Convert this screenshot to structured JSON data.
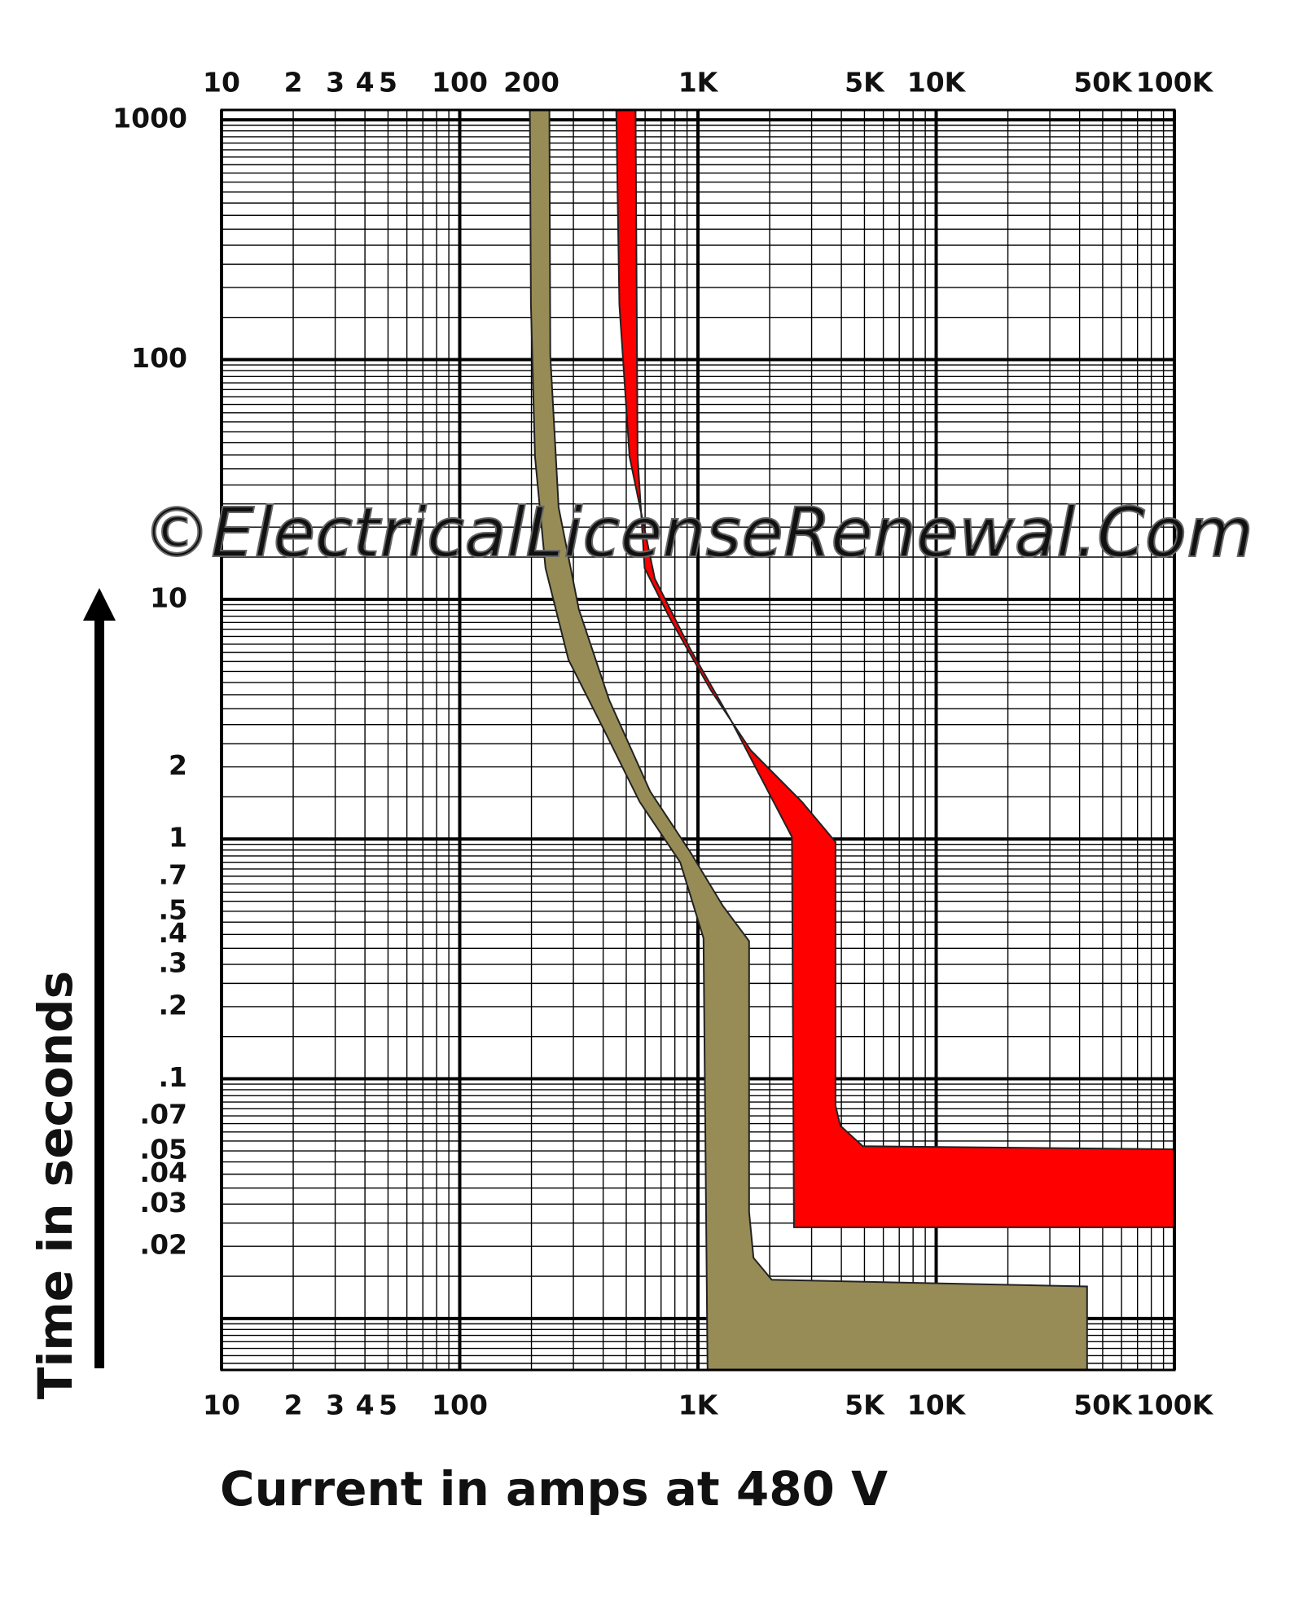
{
  "chart_data": {
    "type": "band",
    "watermark": "©ElectricalLicenseRenewal.Com",
    "xlabel": "Current in amps at 480 V",
    "ylabel": "Time in seconds",
    "xscale": "log",
    "yscale": "log",
    "grid": true,
    "xlim": [
      10,
      100000
    ],
    "ylim": [
      0.0061,
      1100
    ],
    "xticks": [
      10,
      {
        "value": 20,
        "label": "2"
      },
      {
        "value": 30,
        "label": "3"
      },
      {
        "value": 40,
        "label": "4"
      },
      {
        "value": 50,
        "label": "5"
      },
      100,
      {
        "value": 1000,
        "label": "1K"
      },
      {
        "value": 5000,
        "label": "5K"
      },
      {
        "value": 10000,
        "label": "10K"
      },
      {
        "value": 50000,
        "label": "50K"
      },
      {
        "value": 100000,
        "label": "100K"
      }
    ],
    "x2ticks": [
      10,
      {
        "value": 20,
        "label": "2"
      },
      {
        "value": 30,
        "label": "3"
      },
      {
        "value": 40,
        "label": "4"
      },
      {
        "value": 50,
        "label": "5"
      },
      100,
      200,
      {
        "value": 1000,
        "label": "1K"
      },
      {
        "value": 5000,
        "label": "5K"
      },
      {
        "value": 10000,
        "label": "10K"
      },
      {
        "value": 50000,
        "label": "50K"
      },
      {
        "value": 100000,
        "label": "100K"
      }
    ],
    "yticks": [
      1000,
      100,
      10,
      2,
      1,
      {
        "value": 0.7,
        "label": ".7"
      },
      {
        "value": 0.5,
        "label": ".5"
      },
      {
        "value": 0.4,
        "label": ".4"
      },
      {
        "value": 0.3,
        "label": ".3"
      },
      {
        "value": 0.2,
        "label": ".2"
      },
      {
        "value": 0.1,
        "label": ".1"
      },
      {
        "value": 0.07,
        "label": ".07"
      },
      {
        "value": 0.05,
        "label": ".05"
      },
      {
        "value": 0.04,
        "label": ".04"
      },
      {
        "value": 0.03,
        "label": ".03"
      },
      {
        "value": 0.02,
        "label": ".02"
      }
    ],
    "series": [
      {
        "color": "#978c56",
        "x": [
          197,
          199,
          207,
          229,
          286,
          404,
          569,
          842,
          1055,
          1097,
          43000,
          43000,
          2040,
          1710,
          1640,
          1640,
          1270,
          930,
          630,
          424,
          316,
          260,
          240,
          238
        ],
        "values": [
          1100,
          170,
          39.4,
          13.5,
          5.6,
          2.84,
          1.43,
          0.8,
          0.386,
          0.0061,
          0.0061,
          0.0136,
          0.0145,
          0.0179,
          0.0278,
          0.375,
          0.527,
          0.88,
          1.58,
          3.8,
          9.1,
          24.2,
          104,
          1100
        ]
      },
      {
        "color": "#ff0000",
        "x": [
          454,
          468,
          516,
          659,
          929,
          1375,
          2480,
          2530,
          100000,
          100000,
          4920,
          3960,
          3780,
          3780,
          2730,
          1670,
          1130,
          764,
          597,
          558,
          547
        ],
        "values": [
          1100,
          170,
          39.4,
          12.2,
          6.2,
          3.13,
          1.02,
          0.024,
          0.024,
          0.0508,
          0.0523,
          0.0637,
          0.0773,
          0.973,
          1.43,
          2.34,
          4.19,
          8.3,
          13.5,
          39.4,
          1100
        ]
      }
    ]
  }
}
